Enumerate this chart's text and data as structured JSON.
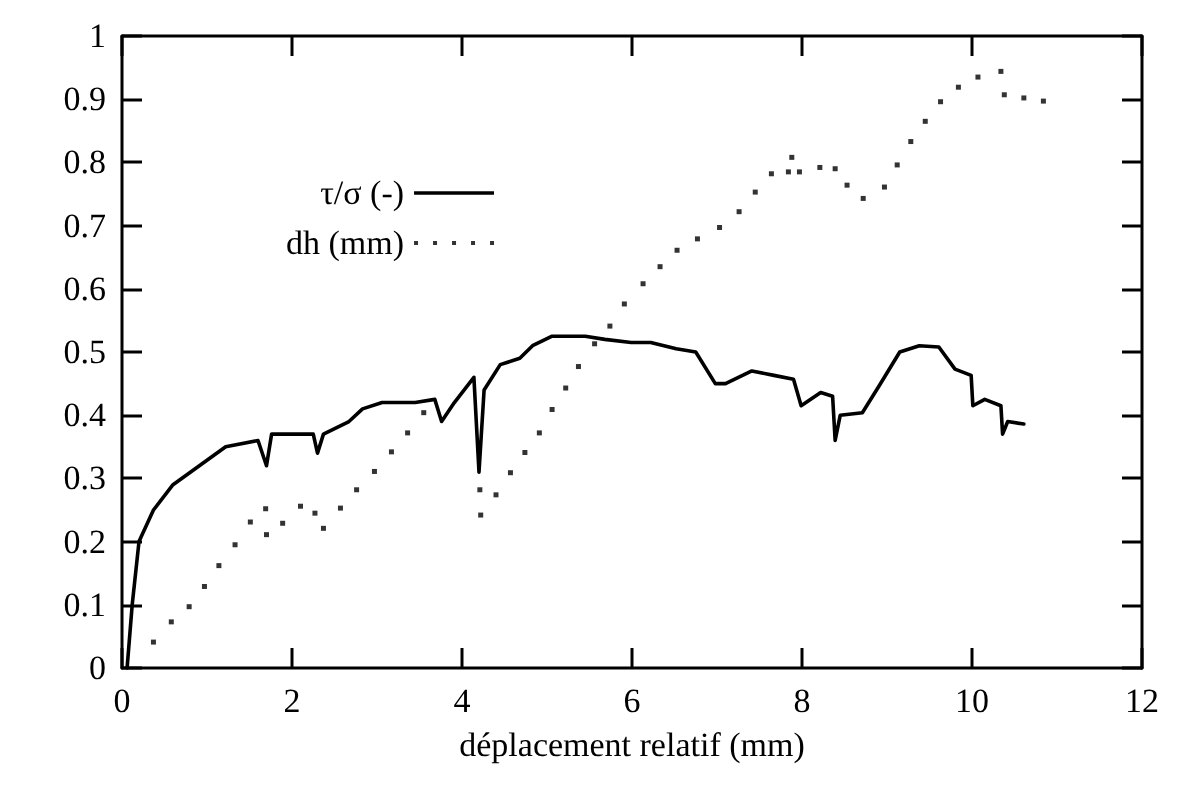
{
  "chart_data": {
    "type": "line",
    "xlabel": "déplacement relatif (mm)",
    "xlim": [
      0,
      12
    ],
    "xticks": [
      0,
      2,
      4,
      6,
      8,
      10,
      12
    ],
    "ylim": [
      0,
      1
    ],
    "yticks": [
      0,
      0.1,
      0.2,
      0.3,
      0.4,
      0.5,
      0.6,
      0.7,
      0.8,
      0.9,
      1
    ],
    "grid": false,
    "legend": "top left",
    "series": [
      {
        "name": "τ/σ (-)",
        "color": "#000000",
        "line_style": "solid",
        "marker": "none",
        "x": [
          0.06,
          0.12,
          0.2,
          0.37,
          0.6,
          0.91,
          1.22,
          1.6,
          1.7,
          1.76,
          1.99,
          2.25,
          2.3,
          2.37,
          2.67,
          2.83,
          3.06,
          3.45,
          3.68,
          3.76,
          3.91,
          4.14,
          4.2,
          4.26,
          4.45,
          4.68,
          4.83,
          5.06,
          5.45,
          5.68,
          5.99,
          6.22,
          6.52,
          6.75,
          6.98,
          7.1,
          7.41,
          7.67,
          7.9,
          7.99,
          8.22,
          8.36,
          8.39,
          8.45,
          8.71,
          8.91,
          9.15,
          9.38,
          9.61,
          9.8,
          9.99,
          10.01,
          10.15,
          10.34,
          10.36,
          10.42,
          10.61
        ],
        "values": [
          0,
          0.1,
          0.2,
          0.25,
          0.29,
          0.32,
          0.35,
          0.36,
          0.32,
          0.37,
          0.37,
          0.37,
          0.34,
          0.37,
          0.39,
          0.41,
          0.42,
          0.42,
          0.425,
          0.39,
          0.42,
          0.46,
          0.31,
          0.44,
          0.48,
          0.49,
          0.51,
          0.525,
          0.525,
          0.52,
          0.515,
          0.515,
          0.505,
          0.5,
          0.45,
          0.45,
          0.47,
          0.463,
          0.457,
          0.415,
          0.436,
          0.43,
          0.36,
          0.4,
          0.404,
          0.447,
          0.5,
          0.51,
          0.508,
          0.473,
          0.463,
          0.415,
          0.425,
          0.415,
          0.37,
          0.39,
          0.386
        ]
      },
      {
        "name": "dh (mm)",
        "type": "scatter",
        "color": "#000000",
        "marker": "square",
        "x": [
          0.37,
          0.58,
          0.79,
          0.97,
          1.14,
          1.33,
          1.51,
          1.69,
          1.7,
          1.89,
          2.1,
          2.27,
          2.37,
          2.57,
          2.76,
          2.97,
          3.17,
          3.36,
          3.55,
          4.21,
          4.22,
          4.4,
          4.57,
          4.74,
          4.91,
          5.06,
          5.22,
          5.37,
          5.56,
          5.74,
          5.91,
          6.13,
          6.33,
          6.53,
          6.77,
          7.03,
          7.26,
          7.45,
          7.64,
          7.84,
          7.88,
          7.97,
          8.21,
          8.39,
          8.53,
          8.72,
          8.97,
          9.12,
          9.28,
          9.45,
          9.63,
          9.84,
          10.07,
          10.34,
          10.38,
          10.61,
          10.84
        ],
        "values": [
          0.041,
          0.073,
          0.097,
          0.129,
          0.162,
          0.195,
          0.231,
          0.252,
          0.211,
          0.229,
          0.256,
          0.245,
          0.221,
          0.253,
          0.282,
          0.311,
          0.342,
          0.372,
          0.404,
          0.282,
          0.242,
          0.274,
          0.309,
          0.341,
          0.372,
          0.409,
          0.443,
          0.477,
          0.513,
          0.541,
          0.576,
          0.608,
          0.635,
          0.661,
          0.679,
          0.697,
          0.722,
          0.753,
          0.782,
          0.785,
          0.808,
          0.785,
          0.792,
          0.79,
          0.764,
          0.743,
          0.761,
          0.796,
          0.833,
          0.865,
          0.896,
          0.919,
          0.935,
          0.944,
          0.907,
          0.902,
          0.897
        ]
      }
    ]
  }
}
